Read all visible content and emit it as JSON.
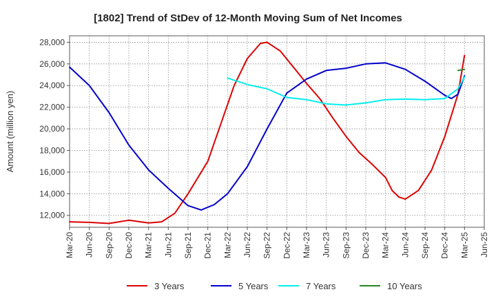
{
  "chart_data": {
    "type": "line",
    "title": "[1802]  Trend of StDev of 12-Month Moving Sum of Net Incomes",
    "ylabel": "Amount (million yen)",
    "xlabel": "",
    "x_ticks": [
      "Mar-20",
      "Jun-20",
      "Sep-20",
      "Dec-20",
      "Mar-21",
      "Jun-21",
      "Sep-21",
      "Dec-21",
      "Mar-22",
      "Jun-22",
      "Sep-22",
      "Dec-22",
      "Mar-23",
      "Jun-23",
      "Sep-23",
      "Dec-23",
      "Mar-24",
      "Jun-24",
      "Sep-24",
      "Dec-24",
      "Mar-25",
      "Jun-25"
    ],
    "y_ticks": [
      12000,
      14000,
      16000,
      18000,
      20000,
      22000,
      24000,
      26000,
      28000
    ],
    "y_tick_labels": [
      "12,000",
      "14,000",
      "16,000",
      "18,000",
      "20,000",
      "22,000",
      "24,000",
      "26,000",
      "28,000"
    ],
    "ylim": [
      10900,
      28600
    ],
    "grid": true,
    "legend_position": "bottom",
    "series": [
      {
        "name": "3 Years",
        "color": "#dd0000",
        "values": [
          [
            "Mar-20",
            11400
          ],
          [
            "Jun-20",
            11350
          ],
          [
            "Sep-20",
            11250
          ],
          [
            "Dec-20",
            11550
          ],
          [
            "Mar-21",
            11300
          ],
          [
            "May-21",
            11400
          ],
          [
            "Jul-21",
            12200
          ],
          [
            "Sep-21",
            14000
          ],
          [
            "Dec-21",
            17000
          ],
          [
            "Feb-22",
            20500
          ],
          [
            "Apr-22",
            24000
          ],
          [
            "Jun-22",
            26500
          ],
          [
            "Aug-22",
            27900
          ],
          [
            "Sep-22",
            28000
          ],
          [
            "Nov-22",
            27200
          ],
          [
            "Jan-23",
            25700
          ],
          [
            "Mar-23",
            24200
          ],
          [
            "May-23",
            22800
          ],
          [
            "Jul-23",
            21000
          ],
          [
            "Sep-23",
            19300
          ],
          [
            "Nov-23",
            17800
          ],
          [
            "Jan-24",
            16700
          ],
          [
            "Mar-24",
            15500
          ],
          [
            "Apr-24",
            14300
          ],
          [
            "May-24",
            13700
          ],
          [
            "Jun-24",
            13500
          ],
          [
            "Aug-24",
            14300
          ],
          [
            "Oct-24",
            16200
          ],
          [
            "Dec-24",
            19300
          ],
          [
            "Feb-25",
            23200
          ],
          [
            "Mar-25",
            26800
          ]
        ]
      },
      {
        "name": "5 Years",
        "color": "#0000cc",
        "values": [
          [
            "Mar-20",
            25700
          ],
          [
            "Jun-20",
            24000
          ],
          [
            "Sep-20",
            21500
          ],
          [
            "Dec-20",
            18500
          ],
          [
            "Mar-21",
            16200
          ],
          [
            "Jun-21",
            14500
          ],
          [
            "Sep-21",
            12900
          ],
          [
            "Nov-21",
            12500
          ],
          [
            "Jan-22",
            13000
          ],
          [
            "Mar-22",
            14000
          ],
          [
            "Jun-22",
            16500
          ],
          [
            "Sep-22",
            20000
          ],
          [
            "Dec-22",
            23300
          ],
          [
            "Mar-23",
            24600
          ],
          [
            "Jun-23",
            25400
          ],
          [
            "Sep-23",
            25600
          ],
          [
            "Dec-23",
            26000
          ],
          [
            "Mar-24",
            26100
          ],
          [
            "Jun-24",
            25500
          ],
          [
            "Sep-24",
            24400
          ],
          [
            "Dec-24",
            23100
          ],
          [
            "Jan-25",
            22800
          ],
          [
            "Feb-25",
            23200
          ],
          [
            "Mar-25",
            24900
          ]
        ]
      },
      {
        "name": "7 Years",
        "color": "#00eeee",
        "values": [
          [
            "Mar-22",
            24700
          ],
          [
            "Jun-22",
            24100
          ],
          [
            "Sep-22",
            23700
          ],
          [
            "Dec-22",
            22900
          ],
          [
            "Mar-23",
            22700
          ],
          [
            "Jun-23",
            22300
          ],
          [
            "Sep-23",
            22200
          ],
          [
            "Dec-23",
            22400
          ],
          [
            "Mar-24",
            22700
          ],
          [
            "Jun-24",
            22750
          ],
          [
            "Sep-24",
            22700
          ],
          [
            "Dec-24",
            22800
          ],
          [
            "Feb-25",
            23700
          ],
          [
            "Mar-25",
            24800
          ]
        ]
      },
      {
        "name": "10 Years",
        "color": "#228822",
        "values": [
          [
            "Feb-25",
            25400
          ],
          [
            "Mar-25",
            25500
          ]
        ]
      }
    ]
  }
}
